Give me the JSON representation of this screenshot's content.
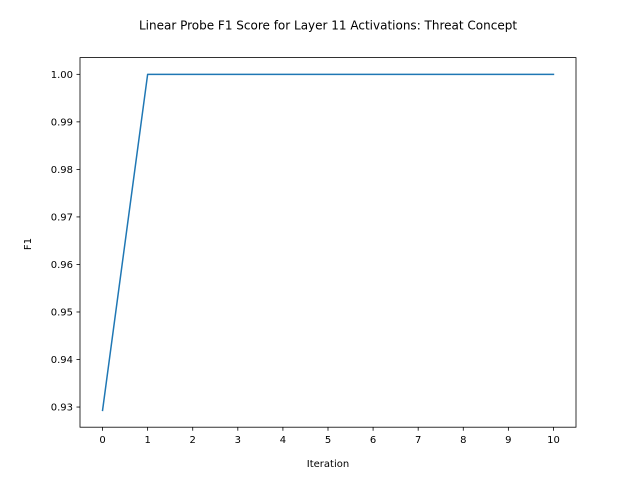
{
  "chart_data": {
    "type": "line",
    "title": "Linear Probe F1 Score for Layer 11 Activations: Threat Concept",
    "xlabel": "Iteration",
    "ylabel": "F1",
    "x": [
      0,
      1,
      2,
      3,
      4,
      5,
      6,
      7,
      8,
      9,
      10
    ],
    "series": [
      {
        "name": "F1",
        "values": [
          0.9293,
          1.0,
          1.0,
          1.0,
          1.0,
          1.0,
          1.0,
          1.0,
          1.0,
          1.0,
          1.0
        ],
        "color": "#1f77b4"
      }
    ],
    "xlim": [
      -0.5,
      10.5
    ],
    "ylim": [
      0.92576,
      1.00352
    ],
    "xticks": [
      0,
      1,
      2,
      3,
      4,
      5,
      6,
      7,
      8,
      9,
      10
    ],
    "xtick_labels": [
      "0",
      "1",
      "2",
      "3",
      "4",
      "5",
      "6",
      "7",
      "8",
      "9",
      "10"
    ],
    "yticks": [
      0.93,
      0.94,
      0.95,
      0.96,
      0.97,
      0.98,
      0.99,
      1.0
    ],
    "ytick_labels": [
      "0.93",
      "0.94",
      "0.95",
      "0.96",
      "0.97",
      "0.98",
      "0.99",
      "1.00"
    ],
    "grid": false,
    "legend": "none"
  }
}
